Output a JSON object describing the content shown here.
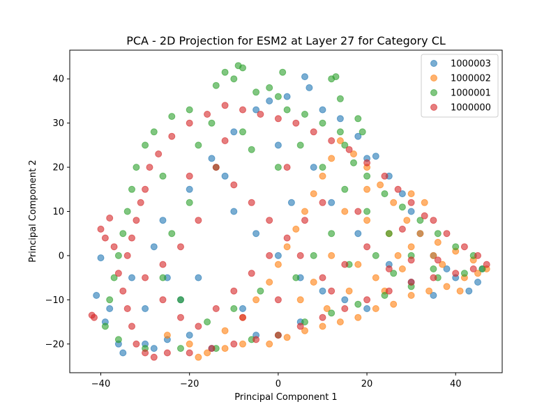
{
  "chart_data": {
    "type": "scatter",
    "title": "PCA - 2D Projection for ESM2 at Layer 27 for Category CL",
    "xlabel": "Principal Component 1",
    "ylabel": "Principal Component 2",
    "xlim": [
      -47,
      50.5
    ],
    "ylim": [
      -26.5,
      46.5
    ],
    "xticks": [
      -40,
      -20,
      0,
      20,
      40
    ],
    "yticks": [
      -20,
      -10,
      0,
      10,
      20,
      30,
      40
    ],
    "grid": false,
    "legend_position": "top-right",
    "series": [
      {
        "name": "1000003",
        "color": "#1f77b4",
        "points": [
          [
            -41,
            -9
          ],
          [
            -40,
            -0.5
          ],
          [
            -38,
            -12
          ],
          [
            -39,
            -15
          ],
          [
            -36,
            -20
          ],
          [
            -35,
            -22
          ],
          [
            -30,
            -20
          ],
          [
            -28,
            -21
          ],
          [
            -25,
            -19
          ],
          [
            -20,
            -18
          ],
          [
            -22,
            -10
          ],
          [
            -25,
            -5
          ],
          [
            -28,
            2
          ],
          [
            -26,
            8
          ],
          [
            -20,
            15
          ],
          [
            -15,
            22
          ],
          [
            -10,
            28
          ],
          [
            -5,
            33
          ],
          [
            -2,
            35
          ],
          [
            2,
            36
          ],
          [
            6,
            40.5
          ],
          [
            7,
            38
          ],
          [
            10,
            33
          ],
          [
            14,
            31
          ],
          [
            18,
            27
          ],
          [
            20,
            22
          ],
          [
            22,
            22.5
          ],
          [
            25,
            18
          ],
          [
            28,
            14
          ],
          [
            30,
            10
          ],
          [
            32,
            5
          ],
          [
            35,
            0
          ],
          [
            38,
            -3
          ],
          [
            40,
            -5
          ],
          [
            43,
            -8
          ],
          [
            45,
            -6
          ],
          [
            46,
            -3
          ],
          [
            -10,
            10
          ],
          [
            -5,
            5
          ],
          [
            0,
            0
          ],
          [
            5,
            -5
          ],
          [
            10,
            -8
          ],
          [
            15,
            -10
          ],
          [
            5,
            -15
          ],
          [
            -5,
            -18
          ],
          [
            -15,
            -21
          ],
          [
            0,
            25
          ],
          [
            -30,
            -12
          ],
          [
            -33,
            -5
          ],
          [
            12,
            12
          ],
          [
            18,
            5
          ],
          [
            25,
            -2
          ],
          [
            30,
            -6
          ],
          [
            8,
            20
          ],
          [
            -12,
            18
          ],
          [
            3,
            12
          ],
          [
            20,
            -12
          ],
          [
            35,
            -9
          ],
          [
            -18,
            -5
          ],
          [
            -8,
            -12
          ]
        ]
      },
      {
        "name": "1000002",
        "color": "#ff7f0e",
        "points": [
          [
            -18,
            -23
          ],
          [
            -16,
            -22
          ],
          [
            -12,
            -21
          ],
          [
            -8,
            -20
          ],
          [
            -2,
            -20
          ],
          [
            2,
            -18.5
          ],
          [
            6,
            -17
          ],
          [
            10,
            -16
          ],
          [
            14,
            -15
          ],
          [
            18,
            -14
          ],
          [
            22,
            -12
          ],
          [
            26,
            -11
          ],
          [
            30,
            -9
          ],
          [
            34,
            -8
          ],
          [
            38,
            -7
          ],
          [
            42,
            -5
          ],
          [
            45,
            -4
          ],
          [
            47,
            -3
          ],
          [
            44,
            -1
          ],
          [
            40,
            1
          ],
          [
            36,
            3
          ],
          [
            32,
            5
          ],
          [
            29,
            8
          ],
          [
            26,
            12
          ],
          [
            23,
            16
          ],
          [
            20,
            20
          ],
          [
            17,
            23
          ],
          [
            14,
            26
          ],
          [
            12,
            22
          ],
          [
            10,
            18
          ],
          [
            8,
            14
          ],
          [
            6,
            10
          ],
          [
            4,
            6
          ],
          [
            2,
            2
          ],
          [
            0,
            -2
          ],
          [
            -2,
            -6
          ],
          [
            -5,
            -10
          ],
          [
            -8,
            -14
          ],
          [
            -12,
            -17
          ],
          [
            15,
            10
          ],
          [
            20,
            8
          ],
          [
            25,
            5
          ],
          [
            30,
            2
          ],
          [
            35,
            0
          ],
          [
            18,
            -2
          ],
          [
            22,
            -5
          ],
          [
            28,
            -3
          ],
          [
            12,
            0
          ],
          [
            8,
            -6
          ],
          [
            16,
            -8
          ],
          [
            30,
            14
          ],
          [
            33,
            12
          ],
          [
            27,
            0
          ],
          [
            24,
            -8
          ],
          [
            11,
            -12
          ],
          [
            5,
            -10
          ],
          [
            20,
            15
          ],
          [
            37,
            -2
          ],
          [
            41,
            -8
          ],
          [
            -20,
            -20
          ],
          [
            -25,
            -18
          ]
        ]
      },
      {
        "name": "1000001",
        "color": "#2ca02c",
        "points": [
          [
            -9,
            43
          ],
          [
            -8,
            42.5
          ],
          [
            -12,
            41.5
          ],
          [
            -10,
            40
          ],
          [
            -14,
            38.5
          ],
          [
            1,
            41.5
          ],
          [
            12,
            40
          ],
          [
            13,
            40.5
          ],
          [
            14,
            35.5
          ],
          [
            -5,
            37
          ],
          [
            -2,
            38
          ],
          [
            0,
            36
          ],
          [
            -20,
            33
          ],
          [
            -24,
            31.5
          ],
          [
            -28,
            28
          ],
          [
            -30,
            25
          ],
          [
            -32,
            20
          ],
          [
            -33,
            15
          ],
          [
            -34,
            10
          ],
          [
            -35,
            5
          ],
          [
            -36,
            0
          ],
          [
            -37,
            -5
          ],
          [
            -38,
            -10
          ],
          [
            -39,
            -16
          ],
          [
            -36,
            -19
          ],
          [
            -30,
            -21
          ],
          [
            -22,
            -21
          ],
          [
            -14,
            -21
          ],
          [
            -6,
            -19
          ],
          [
            0,
            -18
          ],
          [
            6,
            -15
          ],
          [
            12,
            -13
          ],
          [
            18,
            -11
          ],
          [
            24,
            -9
          ],
          [
            30,
            -7
          ],
          [
            36,
            -5
          ],
          [
            42,
            -4
          ],
          [
            46,
            -3
          ],
          [
            44,
            0
          ],
          [
            40,
            2
          ],
          [
            36,
            5
          ],
          [
            32,
            8
          ],
          [
            28,
            11
          ],
          [
            24,
            14
          ],
          [
            20,
            18
          ],
          [
            17,
            21
          ],
          [
            15,
            25
          ],
          [
            14,
            28
          ],
          [
            10,
            30
          ],
          [
            6,
            32
          ],
          [
            2,
            33
          ],
          [
            18,
            31
          ],
          [
            19,
            28
          ],
          [
            -15,
            30
          ],
          [
            -8,
            28
          ],
          [
            5,
            25
          ],
          [
            10,
            20
          ],
          [
            15,
            15
          ],
          [
            20,
            10
          ],
          [
            25,
            5
          ],
          [
            30,
            0
          ],
          [
            35,
            -3
          ],
          [
            12,
            5
          ],
          [
            8,
            0
          ],
          [
            4,
            -5
          ],
          [
            -4,
            -8
          ],
          [
            -10,
            -12
          ],
          [
            -16,
            -15
          ],
          [
            -22,
            -10
          ],
          [
            -26,
            -5
          ],
          [
            -24,
            5
          ],
          [
            -20,
            12
          ],
          [
            -14,
            20
          ],
          [
            -6,
            24
          ],
          [
            0,
            20
          ],
          [
            22,
            0
          ],
          [
            26,
            -4
          ],
          [
            16,
            -2
          ],
          [
            -18,
            25
          ],
          [
            -26,
            18
          ]
        ]
      },
      {
        "name": "1000000",
        "color": "#d62728",
        "points": [
          [
            -42,
            -13.5
          ],
          [
            -41.5,
            -14
          ],
          [
            -40,
            6
          ],
          [
            -39,
            4
          ],
          [
            -38,
            8.5
          ],
          [
            -37,
            2
          ],
          [
            -36,
            -4
          ],
          [
            -35,
            -8
          ],
          [
            -34,
            -12
          ],
          [
            -33,
            -16
          ],
          [
            -32,
            -20
          ],
          [
            -30,
            -22
          ],
          [
            -28,
            -23
          ],
          [
            -25,
            -22
          ],
          [
            -20,
            -22
          ],
          [
            -15,
            -21
          ],
          [
            -10,
            -20
          ],
          [
            -5,
            -19
          ],
          [
            0,
            -18
          ],
          [
            5,
            -16
          ],
          [
            10,
            -14
          ],
          [
            15,
            -12
          ],
          [
            20,
            -10
          ],
          [
            25,
            -8
          ],
          [
            30,
            -6
          ],
          [
            35,
            -5
          ],
          [
            40,
            -4
          ],
          [
            44,
            -3
          ],
          [
            47,
            -2
          ],
          [
            45,
            0
          ],
          [
            42,
            2
          ],
          [
            38,
            5
          ],
          [
            35,
            8
          ],
          [
            33,
            9
          ],
          [
            30,
            12
          ],
          [
            27,
            15
          ],
          [
            24,
            18
          ],
          [
            20,
            21
          ],
          [
            16,
            24
          ],
          [
            12,
            26
          ],
          [
            8,
            28
          ],
          [
            4,
            30
          ],
          [
            0,
            31
          ],
          [
            -4,
            32
          ],
          [
            -8,
            33
          ],
          [
            -12,
            34
          ],
          [
            -16,
            32
          ],
          [
            -20,
            30
          ],
          [
            -24,
            27
          ],
          [
            -27,
            23
          ],
          [
            -29,
            20
          ],
          [
            -30,
            15
          ],
          [
            -31,
            12
          ],
          [
            -32,
            8
          ],
          [
            -33,
            4
          ],
          [
            -34,
            0
          ],
          [
            -30,
            -5
          ],
          [
            -26,
            -10
          ],
          [
            -22,
            -14
          ],
          [
            -18,
            -16
          ],
          [
            -14,
            -12
          ],
          [
            -10,
            -8
          ],
          [
            -6,
            -4
          ],
          [
            -2,
            0
          ],
          [
            2,
            4
          ],
          [
            6,
            8
          ],
          [
            10,
            12
          ],
          [
            -14,
            20
          ],
          [
            -10,
            16
          ],
          [
            -6,
            12
          ],
          [
            -2,
            8
          ],
          [
            2,
            20
          ],
          [
            -18,
            8
          ],
          [
            -22,
            2
          ],
          [
            -26,
            -2
          ],
          [
            5,
            0
          ],
          [
            10,
            -5
          ],
          [
            15,
            -2
          ],
          [
            20,
            2
          ],
          [
            25,
            -3
          ],
          [
            30,
            -1
          ],
          [
            18,
            10
          ],
          [
            12,
            -8
          ],
          [
            0,
            -10
          ],
          [
            -8,
            -14
          ],
          [
            28,
            6
          ],
          [
            36,
            -1
          ],
          [
            -20,
            18
          ],
          [
            -12,
            26
          ]
        ]
      }
    ]
  }
}
